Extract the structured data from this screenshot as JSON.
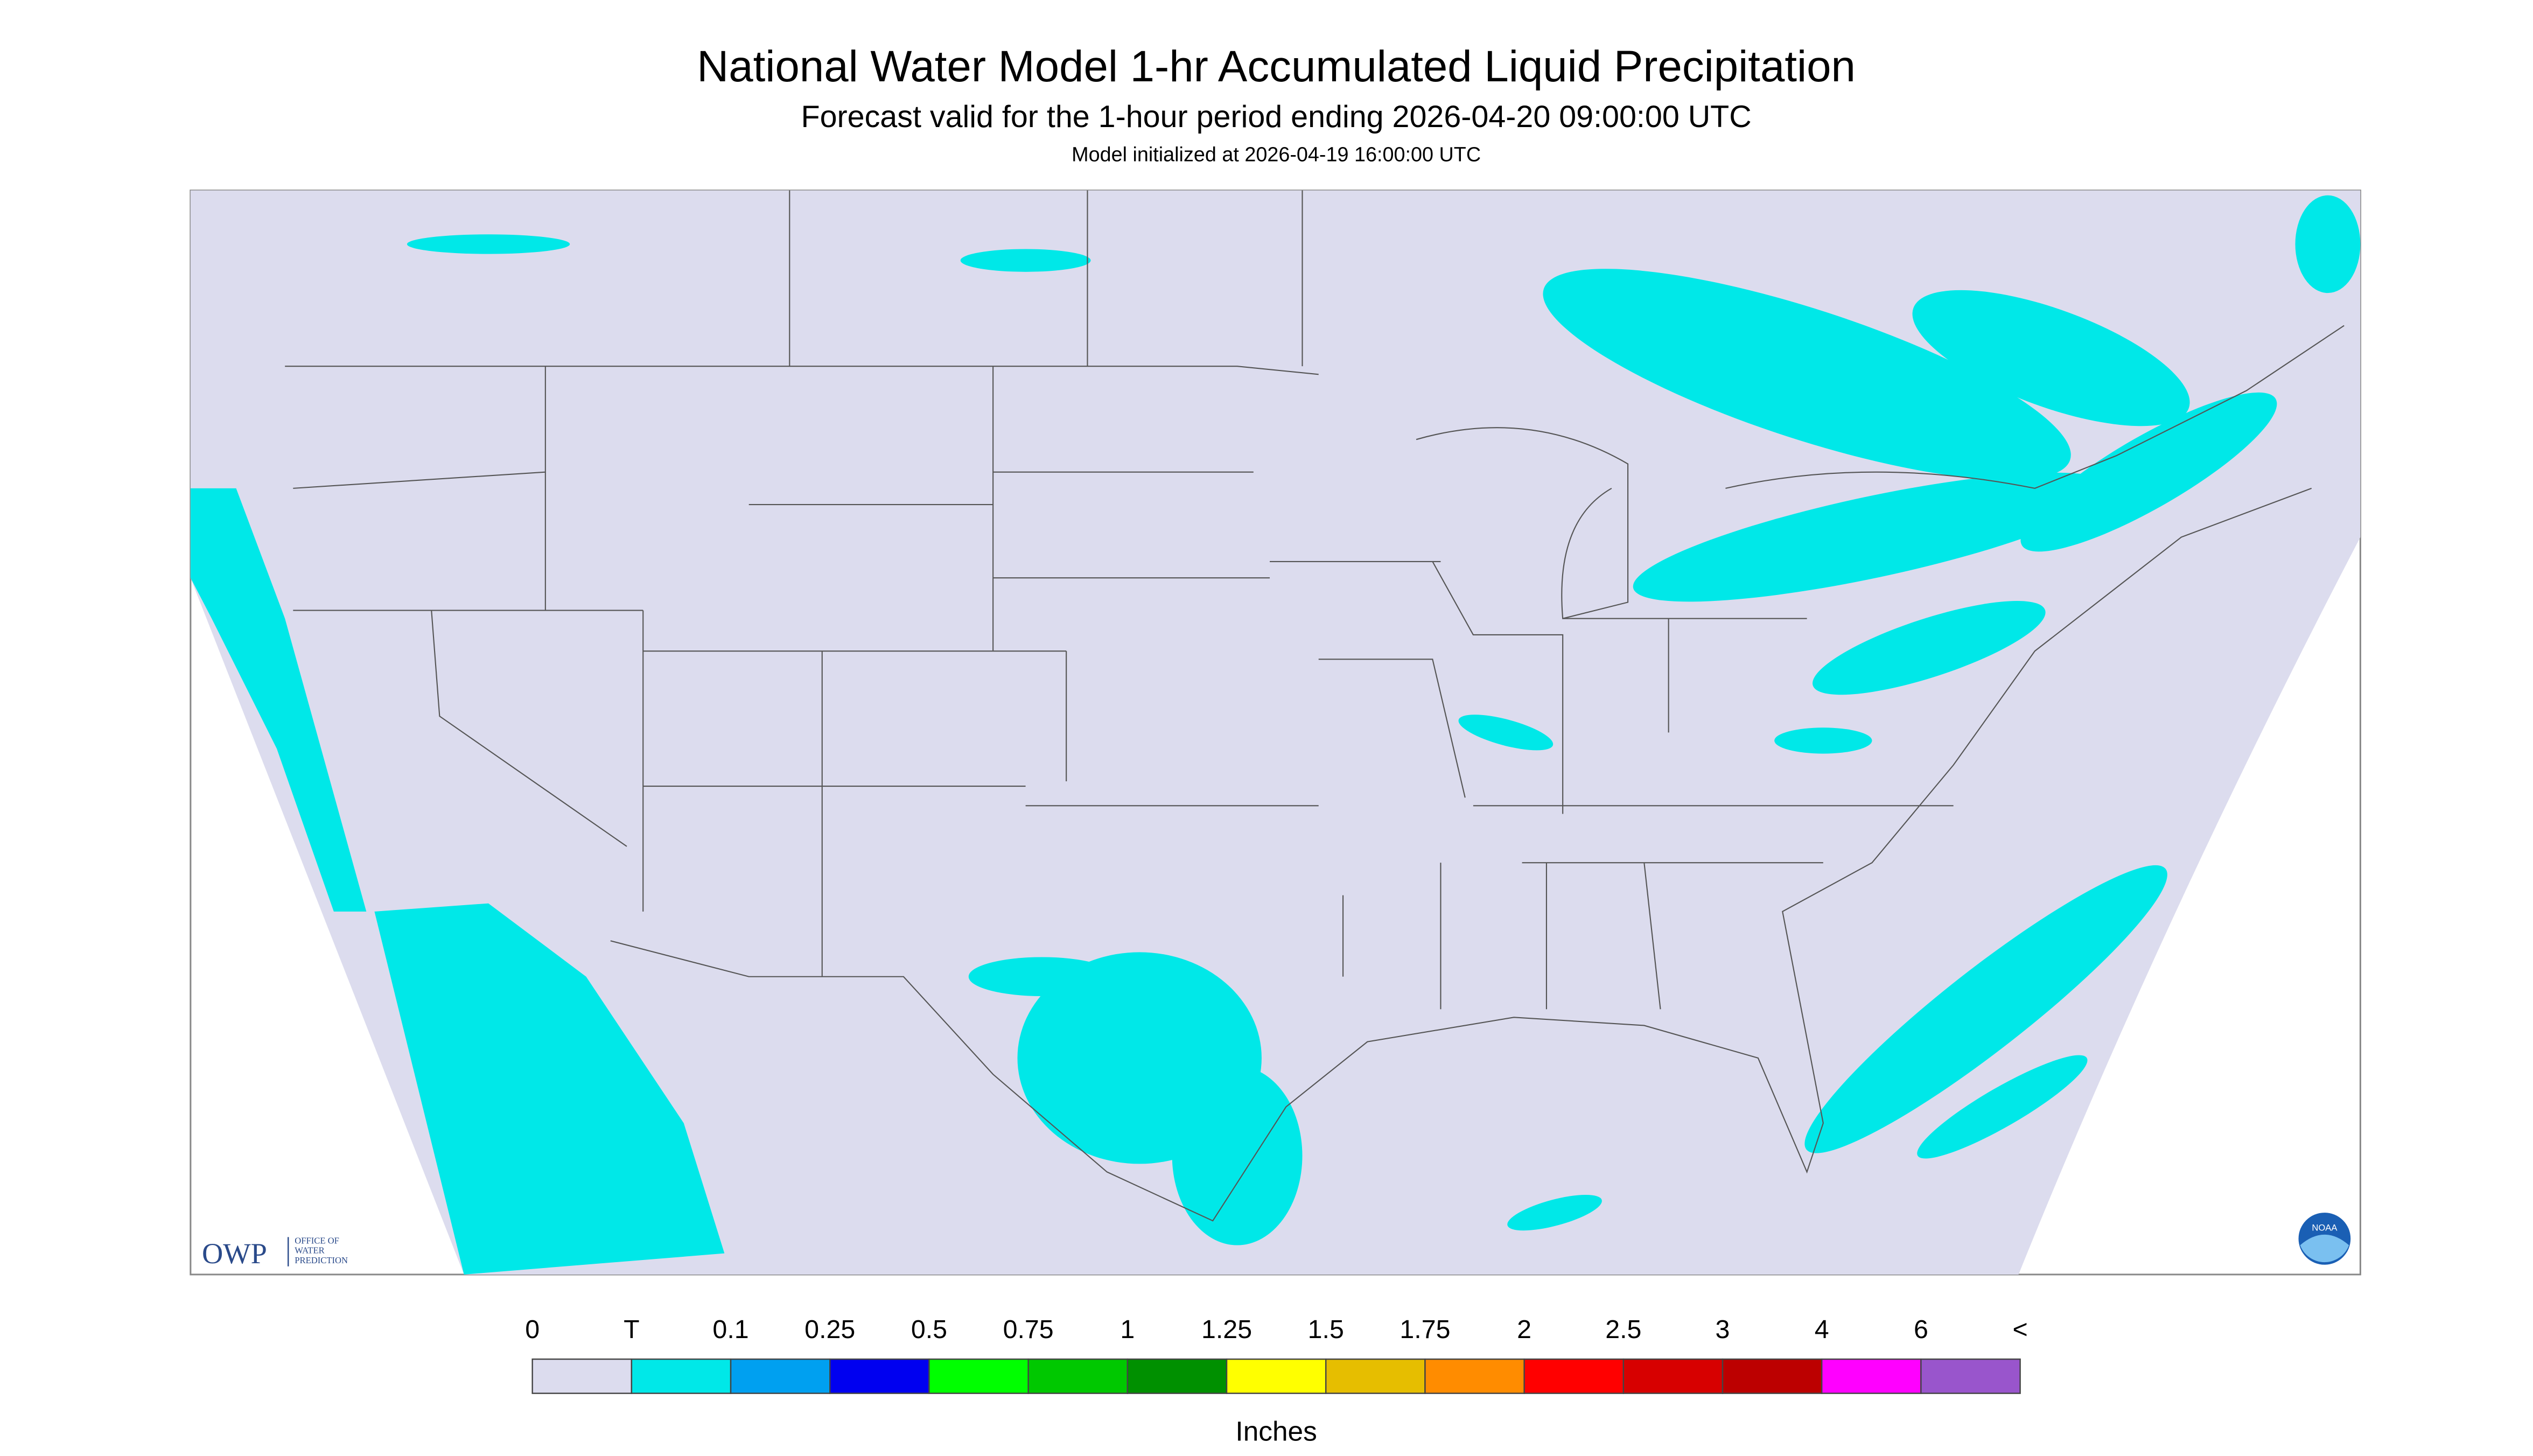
{
  "header": {
    "title": "National Water Model 1-hr Accumulated Liquid Precipitation",
    "subtitle": "Forecast valid for the 1-hour period ending 2026-04-20 09:00:00 UTC",
    "note": "Model initialized at 2026-04-19 16:00:00 UTC"
  },
  "logos": {
    "owp": "OWP",
    "owp_text": [
      "OFFICE OF",
      "WATER",
      "PREDICTION"
    ],
    "noaa": "NOAA"
  },
  "legend": {
    "labels": [
      "0",
      "T",
      "0.1",
      "0.25",
      "0.5",
      "0.75",
      "1",
      "1.25",
      "1.5",
      "1.75",
      "2",
      "2.5",
      "3",
      "4",
      "6",
      "<"
    ],
    "colors": [
      "#dcdcee",
      "#00e8e8",
      "#00a0f0",
      "#0000f0",
      "#00ff00",
      "#00c800",
      "#009000",
      "#ffff00",
      "#e6be00",
      "#ff8c00",
      "#ff0000",
      "#d70000",
      "#bc0000",
      "#ff00ff",
      "#9955cc"
    ],
    "unit": "Inches"
  }
}
